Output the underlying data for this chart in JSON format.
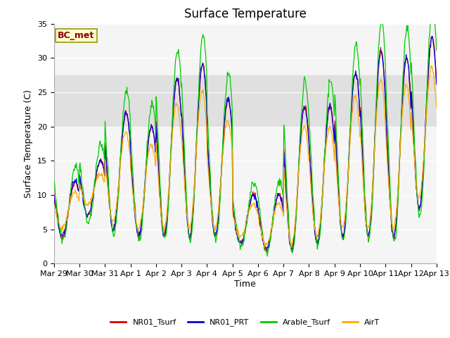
{
  "title": "Surface Temperature",
  "xlabel": "Time",
  "ylabel": "Surface Temperature (C)",
  "ylim": [
    0,
    35
  ],
  "num_days": 15,
  "points_per_day": 48,
  "bc_met_label": "BC_met",
  "shaded_band": [
    20,
    27.5
  ],
  "line_colors": {
    "NR01_Tsurf": "#dd0000",
    "NR01_PRT": "#0000dd",
    "Arable_Tsurf": "#00cc00",
    "AirT": "#ffaa00"
  },
  "xtick_labels": [
    "Mar 29",
    "Mar 30",
    "Mar 31",
    "Apr 1",
    "Apr 2",
    "Apr 3",
    "Apr 4",
    "Apr 5",
    "Apr 6",
    "Apr 7",
    "Apr 8",
    "Apr 9",
    "Apr 10",
    "Apr 11",
    "Apr 12",
    "Apr 13"
  ],
  "fig_bg_color": "#ffffff",
  "plot_bg_color": "#f5f5f5",
  "shaded_color": "#e0e0e0",
  "grid_color": "#ffffff",
  "title_fontsize": 12,
  "axis_label_fontsize": 9,
  "tick_fontsize": 8,
  "legend_fontsize": 8,
  "bc_met_fontsize": 9,
  "line_width": 0.9
}
